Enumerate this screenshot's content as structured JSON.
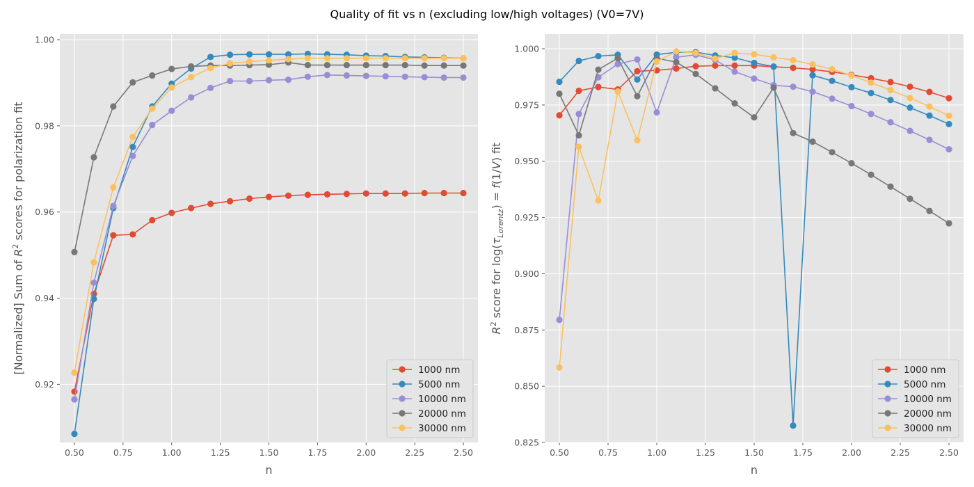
{
  "suptitle": "Quality of fit vs n (excluding low/high voltages) (V0=7V)",
  "colors": [
    "#E24A33",
    "#348ABD",
    "#988ED5",
    "#777777",
    "#FBC15E"
  ],
  "chart_data": [
    {
      "type": "line",
      "title": "",
      "xlabel": "n",
      "ylabel_parts": [
        "[Normalized] Sum of ",
        "R",
        "2",
        " scores for polarization fit"
      ],
      "xlim": [
        0.425,
        2.575
      ],
      "ylim": [
        0.9065,
        1.0013
      ],
      "xticks": [
        "0.50",
        "0.75",
        "1.00",
        "1.25",
        "1.50",
        "1.75",
        "2.00",
        "2.25",
        "2.50"
      ],
      "yticks": [
        "0.92",
        "0.94",
        "0.96",
        "0.98",
        "1.00"
      ],
      "grid": true,
      "legend_position": "lower-right",
      "x": [
        0.5,
        0.6,
        0.7,
        0.8,
        0.9,
        1.0,
        1.1,
        1.2,
        1.3,
        1.4,
        1.5,
        1.6,
        1.7,
        1.8,
        1.9,
        2.0,
        2.1,
        2.2,
        2.3,
        2.4,
        2.5
      ],
      "series": [
        {
          "name": "1000 nm",
          "values": [
            0.9183,
            0.941,
            0.9546,
            0.9548,
            0.9581,
            0.9598,
            0.9609,
            0.9619,
            0.9625,
            0.9631,
            0.9635,
            0.9638,
            0.964,
            0.9641,
            0.9642,
            0.9643,
            0.9643,
            0.9643,
            0.9644,
            0.9644,
            0.9644
          ]
        },
        {
          "name": "5000 nm",
          "values": [
            0.9085,
            0.9398,
            0.9609,
            0.9751,
            0.9845,
            0.9898,
            0.9933,
            0.996,
            0.9965,
            0.9966,
            0.9966,
            0.9966,
            0.9967,
            0.9966,
            0.9965,
            0.9963,
            0.9962,
            0.996,
            0.9959,
            0.9958,
            0.9957
          ]
        },
        {
          "name": "10000 nm",
          "values": [
            0.9165,
            0.9436,
            0.9614,
            0.973,
            0.9802,
            0.9835,
            0.9866,
            0.9888,
            0.9904,
            0.9904,
            0.9906,
            0.9907,
            0.9914,
            0.9918,
            0.9917,
            0.9916,
            0.9915,
            0.9914,
            0.9913,
            0.9912,
            0.9912
          ]
        },
        {
          "name": "20000 nm",
          "values": [
            0.9507,
            0.9727,
            0.9845,
            0.9901,
            0.9917,
            0.9932,
            0.9938,
            0.994,
            0.994,
            0.9941,
            0.9942,
            0.9947,
            0.9941,
            0.9941,
            0.9941,
            0.9941,
            0.9941,
            0.9941,
            0.994,
            0.994,
            0.994
          ]
        },
        {
          "name": "30000 nm",
          "values": [
            0.9227,
            0.9483,
            0.9657,
            0.9774,
            0.984,
            0.9889,
            0.9913,
            0.9934,
            0.9945,
            0.9949,
            0.9952,
            0.9955,
            0.9957,
            0.9957,
            0.9957,
            0.9957,
            0.9957,
            0.9957,
            0.9957,
            0.9957,
            0.9957
          ]
        }
      ]
    },
    {
      "type": "line",
      "title": "",
      "xlabel": "n",
      "ylabel_parts": [
        "R",
        "2",
        " score for log(",
        "τ",
        "Lorentz",
        ") = ",
        "f",
        "(1/",
        "V",
        ") fit"
      ],
      "xlim": [
        0.425,
        2.575
      ],
      "ylim": [
        0.825,
        1.0065
      ],
      "xticks": [
        "0.50",
        "0.75",
        "1.00",
        "1.25",
        "1.50",
        "1.75",
        "2.00",
        "2.25",
        "2.50"
      ],
      "yticks": [
        "0.825",
        "0.850",
        "0.875",
        "0.900",
        "0.925",
        "0.950",
        "0.975",
        "1.000"
      ],
      "grid": true,
      "legend_position": "lower-right",
      "x": [
        0.5,
        0.6,
        0.7,
        0.8,
        0.9,
        1.0,
        1.1,
        1.2,
        1.3,
        1.4,
        1.5,
        1.6,
        1.7,
        1.8,
        1.9,
        2.0,
        2.1,
        2.2,
        2.3,
        2.4,
        2.5
      ],
      "series": [
        {
          "name": "1000 nm",
          "values": [
            0.9704,
            0.9813,
            0.983,
            0.9819,
            0.99,
            0.9904,
            0.9912,
            0.9922,
            0.9925,
            0.9925,
            0.9925,
            0.992,
            0.9915,
            0.9908,
            0.9897,
            0.9884,
            0.9869,
            0.9852,
            0.9831,
            0.9808,
            0.978
          ]
        },
        {
          "name": "5000 nm",
          "values": [
            0.9853,
            0.9946,
            0.9967,
            0.9973,
            0.9863,
            0.9974,
            0.9984,
            0.9985,
            0.997,
            0.996,
            0.9937,
            0.9921,
            0.8325,
            0.9882,
            0.9857,
            0.9829,
            0.9803,
            0.9772,
            0.9738,
            0.9703,
            0.9665
          ]
        },
        {
          "name": "10000 nm",
          "values": [
            0.8795,
            0.971,
            0.9873,
            0.9932,
            0.9952,
            0.9717,
            0.9962,
            0.9973,
            0.995,
            0.9898,
            0.9867,
            0.9838,
            0.9831,
            0.9809,
            0.9778,
            0.9745,
            0.971,
            0.9673,
            0.9635,
            0.9595,
            0.9553
          ]
        },
        {
          "name": "20000 nm",
          "values": [
            0.98,
            0.9615,
            0.9907,
            0.9958,
            0.9789,
            0.9958,
            0.994,
            0.9888,
            0.9824,
            0.9757,
            0.9695,
            0.9827,
            0.9625,
            0.9587,
            0.954,
            0.9491,
            0.944,
            0.9387,
            0.9333,
            0.9279,
            0.9224
          ]
        },
        {
          "name": "30000 nm",
          "values": [
            0.8583,
            0.9564,
            0.9325,
            0.981,
            0.9593,
            0.9943,
            0.9988,
            0.9981,
            0.9956,
            0.9981,
            0.9975,
            0.9962,
            0.9949,
            0.993,
            0.9909,
            0.9881,
            0.9849,
            0.9816,
            0.9781,
            0.9743,
            0.9702
          ]
        }
      ]
    }
  ]
}
